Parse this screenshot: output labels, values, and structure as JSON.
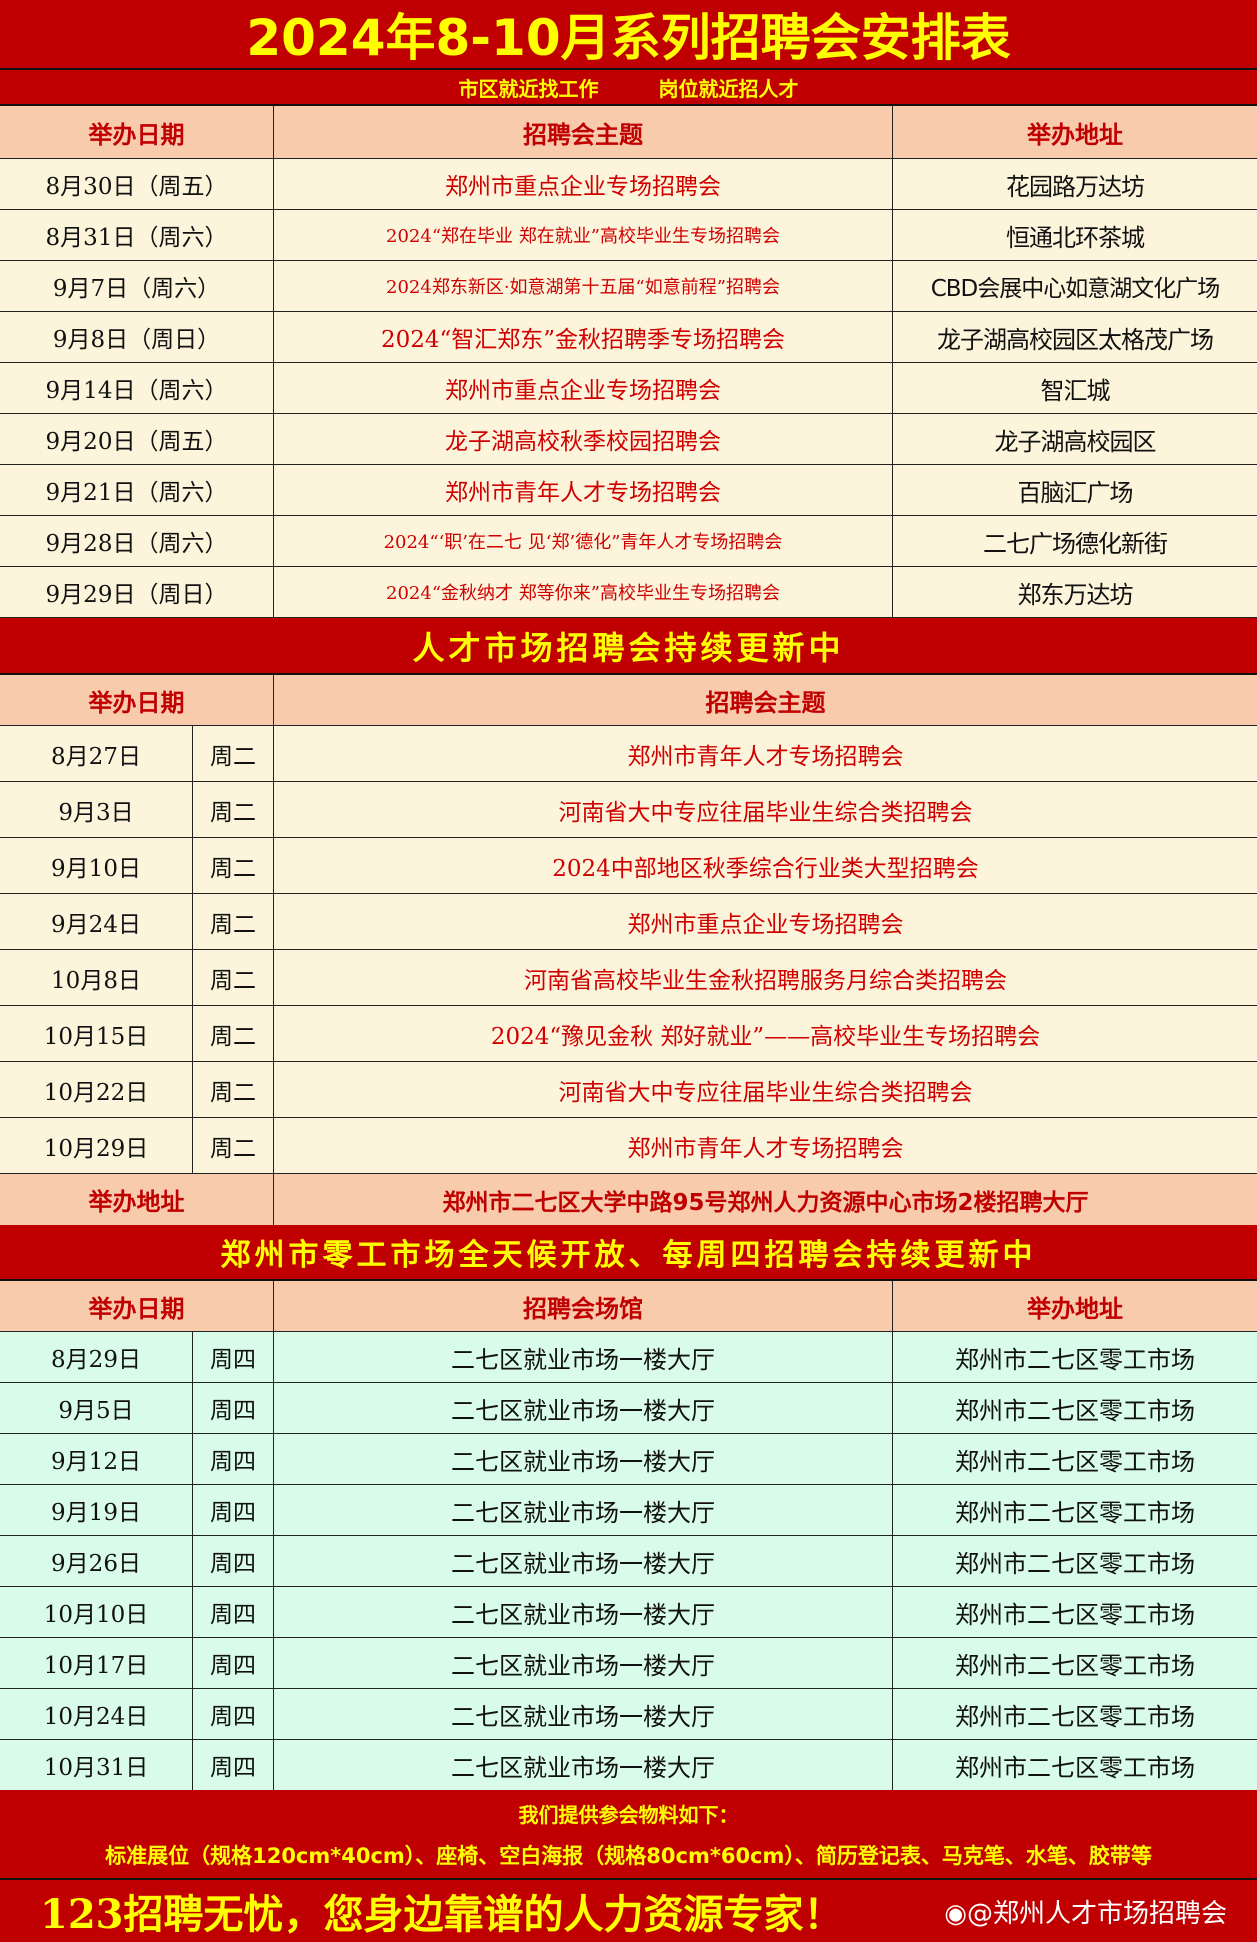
{
  "title": "2024年8-10月系列招聘会安排表",
  "subtitle": "市区就近找工作　　　岗位就近招人才",
  "colors": {
    "banner": "#c00000",
    "banner_text": "#ffff00",
    "header_bg": "#f8cbad",
    "row_bg": "#fcf5dc",
    "green_bg": "#d9fbe9",
    "topic_text": "#d00000"
  },
  "section1": {
    "headers": [
      "举办日期",
      "招聘会主题",
      "举办地址"
    ],
    "rows": [
      [
        "8月30日（周五）",
        "郑州市重点企业专场招聘会",
        "花园路万达坊"
      ],
      [
        "8月31日（周六）",
        "2024“郑在毕业 郑在就业”高校毕业生专场招聘会",
        "恒通北环茶城"
      ],
      [
        "9月7日（周六）",
        "2024郑东新区·如意湖第十五届“如意前程”招聘会",
        "CBD会展中心如意湖文化广场"
      ],
      [
        "9月8日（周日）",
        "2024“智汇郑东”金秋招聘季专场招聘会",
        "龙子湖高校园区太格茂广场"
      ],
      [
        "9月14日（周六）",
        "郑州市重点企业专场招聘会",
        "智汇城"
      ],
      [
        "9月20日（周五）",
        "龙子湖高校秋季校园招聘会",
        "龙子湖高校园区"
      ],
      [
        "9月21日（周六）",
        "郑州市青年人才专场招聘会",
        "百脑汇广场"
      ],
      [
        "9月28日（周六）",
        "2024“‘职’在二七 见‘郑’德化”青年人才专场招聘会",
        "二七广场德化新街"
      ],
      [
        "9月29日（周日）",
        "2024“金秋纳才 郑等你来”高校毕业生专场招聘会",
        "郑东万达坊"
      ]
    ]
  },
  "section2": {
    "banner": "人才市场招聘会持续更新中",
    "headers": [
      "举办日期",
      "招聘会主题"
    ],
    "rows": [
      [
        "8月27日",
        "周二",
        "郑州市青年人才专场招聘会"
      ],
      [
        "9月3日",
        "周二",
        "河南省大中专应往届毕业生综合类招聘会"
      ],
      [
        "9月10日",
        "周二",
        "2024中部地区秋季综合行业类大型招聘会"
      ],
      [
        "9月24日",
        "周二",
        "郑州市重点企业专场招聘会"
      ],
      [
        "10月8日",
        "周二",
        "河南省高校毕业生金秋招聘服务月综合类招聘会"
      ],
      [
        "10月15日",
        "周二",
        "2024“豫见金秋 郑好就业”——高校毕业生专场招聘会"
      ],
      [
        "10月22日",
        "周二",
        "河南省大中专应往届毕业生综合类招聘会"
      ],
      [
        "10月29日",
        "周二",
        "郑州市青年人才专场招聘会"
      ]
    ],
    "address_label": "举办地址",
    "address": "郑州市二七区大学中路95号郑州人力资源中心市场2楼招聘大厅"
  },
  "section3": {
    "banner": "郑州市零工市场全天候开放、每周四招聘会持续更新中",
    "headers": [
      "举办日期",
      "招聘会场馆",
      "举办地址"
    ],
    "rows": [
      [
        "8月29日",
        "周四",
        "二七区就业市场一楼大厅",
        "郑州市二七区零工市场"
      ],
      [
        "9月5日",
        "周四",
        "二七区就业市场一楼大厅",
        "郑州市二七区零工市场"
      ],
      [
        "9月12日",
        "周四",
        "二七区就业市场一楼大厅",
        "郑州市二七区零工市场"
      ],
      [
        "9月19日",
        "周四",
        "二七区就业市场一楼大厅",
        "郑州市二七区零工市场"
      ],
      [
        "9月26日",
        "周四",
        "二七区就业市场一楼大厅",
        "郑州市二七区零工市场"
      ],
      [
        "10月10日",
        "周四",
        "二七区就业市场一楼大厅",
        "郑州市二七区零工市场"
      ],
      [
        "10月17日",
        "周四",
        "二七区就业市场一楼大厅",
        "郑州市二七区零工市场"
      ],
      [
        "10月24日",
        "周四",
        "二七区就业市场一楼大厅",
        "郑州市二七区零工市场"
      ],
      [
        "10月31日",
        "周四",
        "二七区就业市场一楼大厅",
        "郑州市二七区零工市场"
      ]
    ]
  },
  "footer": {
    "materials_title": "我们提供参会物料如下：",
    "materials": "标准展位（规格120cm*40cm）、座椅、空白海报（规格80cm*60cm）、简历登记表、马克笔、水笔、胶带等",
    "slogan": "123招聘无忧，您身边靠谱的人力资源专家！",
    "watermark": "@郑州人才市场招聘会"
  }
}
